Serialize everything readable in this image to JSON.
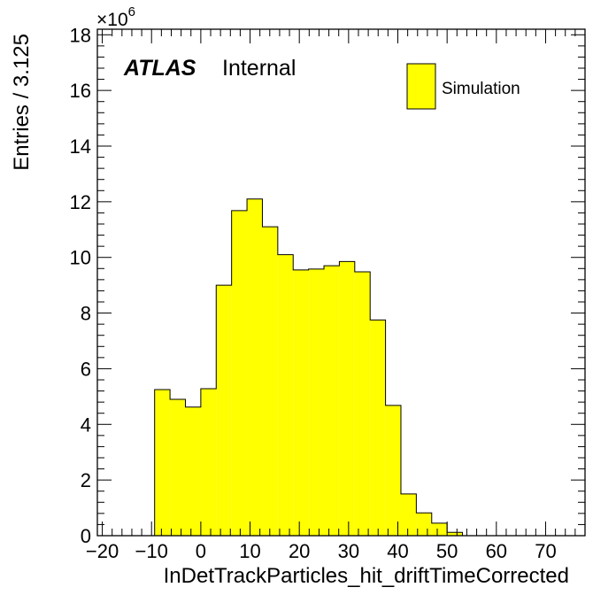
{
  "chart_data": {
    "type": "histogram",
    "xlabel": "InDetTrackParticles_hit_driftTimeCorrected",
    "ylabel": "Entries / 3.125",
    "xlim": [
      -21,
      78
    ],
    "ylim": [
      0,
      18.2
    ],
    "y_multiplier": "×10",
    "y_multiplier_exponent": "6",
    "x_ticks": [
      -20,
      -10,
      0,
      10,
      20,
      30,
      40,
      50,
      60,
      70
    ],
    "x_tick_labels": [
      "−20",
      "−10",
      "0",
      "10",
      "20",
      "30",
      "40",
      "50",
      "60",
      "70"
    ],
    "y_ticks": [
      0,
      2,
      4,
      6,
      8,
      10,
      12,
      14,
      16,
      18
    ],
    "y_tick_labels": [
      "0",
      "2",
      "4",
      "6",
      "8",
      "10",
      "12",
      "14",
      "16",
      "18"
    ],
    "bin_width": 3.125,
    "bin_edges": [
      -9.375,
      -6.25,
      -3.125,
      0,
      3.125,
      6.25,
      9.375,
      12.5,
      15.625,
      18.75,
      21.875,
      25,
      28.125,
      31.25,
      34.375,
      37.5,
      40.625,
      43.75,
      46.875,
      50,
      53.125
    ],
    "values": [
      5.25,
      4.9,
      4.62,
      5.28,
      9.0,
      11.68,
      12.1,
      11.1,
      10.1,
      9.55,
      9.58,
      9.7,
      9.85,
      9.48,
      7.75,
      4.68,
      1.5,
      0.82,
      0.45,
      0.12
    ],
    "series": [
      {
        "name": "Simulation",
        "color": "#ffff00",
        "edge_color": "#000000"
      }
    ],
    "legend_position": "top-right",
    "annotation": {
      "atlas": "ATLAS",
      "label": "Internal"
    },
    "grid": false
  }
}
